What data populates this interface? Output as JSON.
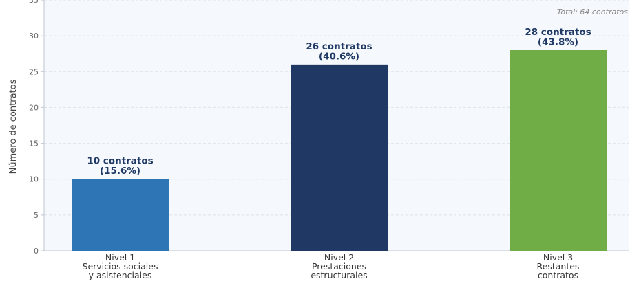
{
  "colors": {
    "plot_background": "#f5f8fc",
    "grid": "#dde3ec",
    "axis": "#bfc6d1",
    "label_text": "#1f3864"
  },
  "chart_data": {
    "type": "bar",
    "categories": [
      [
        "Nivel 1",
        "Servicios sociales",
        "y asistenciales"
      ],
      [
        "Nivel 2",
        "Prestaciones",
        "estructurales"
      ],
      [
        "Nivel 3",
        "Restantes",
        "contratos"
      ]
    ],
    "values": [
      10,
      26,
      28
    ],
    "bar_labels": [
      [
        "10 contratos",
        "(15.6%)"
      ],
      [
        "26 contratos",
        "(40.6%)"
      ],
      [
        "28 contratos",
        "(43.8%)"
      ]
    ],
    "bar_colors": [
      "#2e75b6",
      "#1f3864",
      "#70ad47"
    ],
    "ylabel": "Número de contratos",
    "xlabel": "",
    "ylim": [
      0,
      35
    ],
    "yticks": [
      0,
      5,
      10,
      15,
      20,
      25,
      30,
      35
    ],
    "grid": true,
    "annotation": "Total: 64 contratos"
  }
}
